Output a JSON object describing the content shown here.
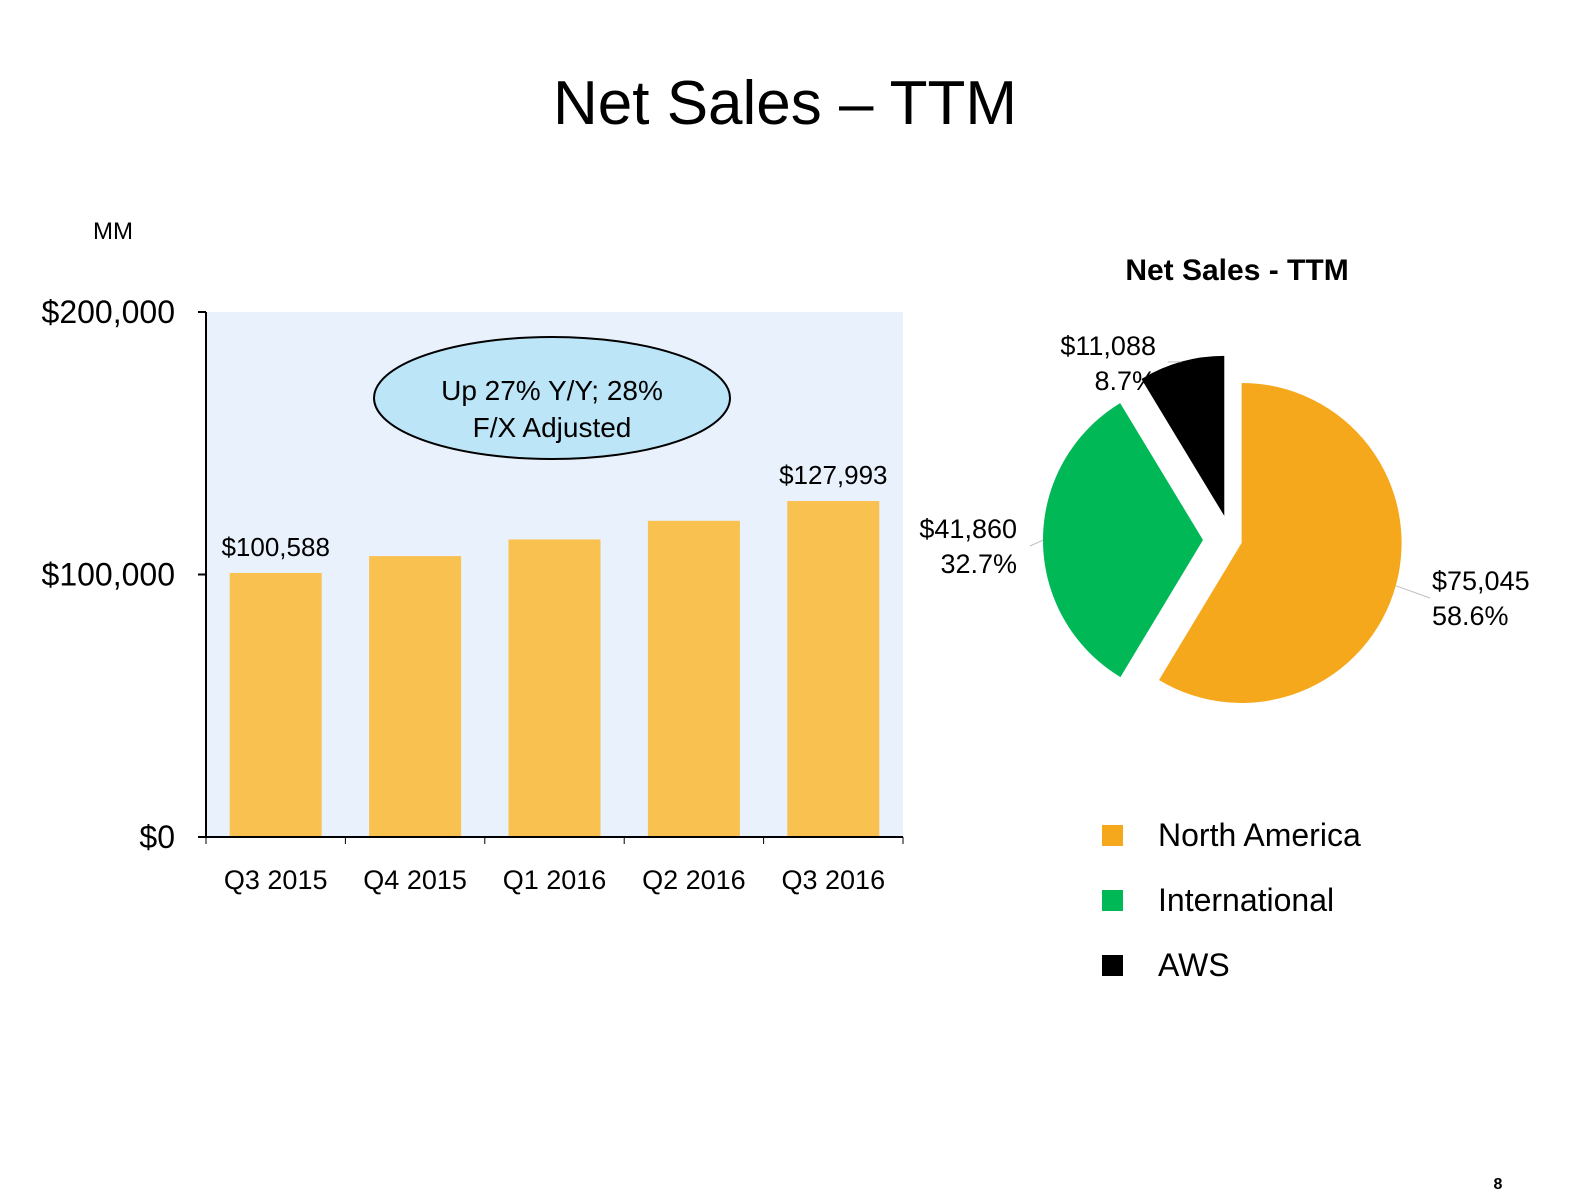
{
  "slide": {
    "title": "Net Sales – TTM",
    "page_number": "8"
  },
  "chart_data": [
    {
      "type": "bar",
      "unit_label": "MM",
      "categories": [
        "Q3 2015",
        "Q4 2015",
        "Q1 2016",
        "Q2 2016",
        "Q3 2016"
      ],
      "values": [
        100588,
        107006,
        113354,
        120457,
        127993
      ],
      "data_labels": [
        "$100,588",
        "",
        "",
        "",
        "$127,993"
      ],
      "ylim": [
        0,
        200000
      ],
      "yticks": [
        0,
        100000,
        200000
      ],
      "ytick_labels": [
        "$0",
        "$100,000",
        "$200,000"
      ],
      "annotation": {
        "line1": "Up 27% Y/Y; 28%",
        "line2": "F/X Adjusted"
      },
      "colors": {
        "bar": "#F9C150",
        "plot_bg": "#E8F1FC",
        "annotation_fill": "#BDE5F8"
      }
    },
    {
      "type": "pie",
      "title": "Net Sales - TTM",
      "slices": [
        {
          "name": "North America",
          "value": 75045,
          "percent": 58.6,
          "value_label": "$75,045",
          "percent_label": "58.6%",
          "color": "#F6A81C"
        },
        {
          "name": "International",
          "value": 41860,
          "percent": 32.7,
          "value_label": "$41,860",
          "percent_label": "32.7%",
          "color": "#00B956"
        },
        {
          "name": "AWS",
          "value": 11088,
          "percent": 8.7,
          "value_label": "$11,088",
          "percent_label": "8.7%",
          "color": "#000000"
        }
      ],
      "legend_position": "bottom"
    }
  ]
}
